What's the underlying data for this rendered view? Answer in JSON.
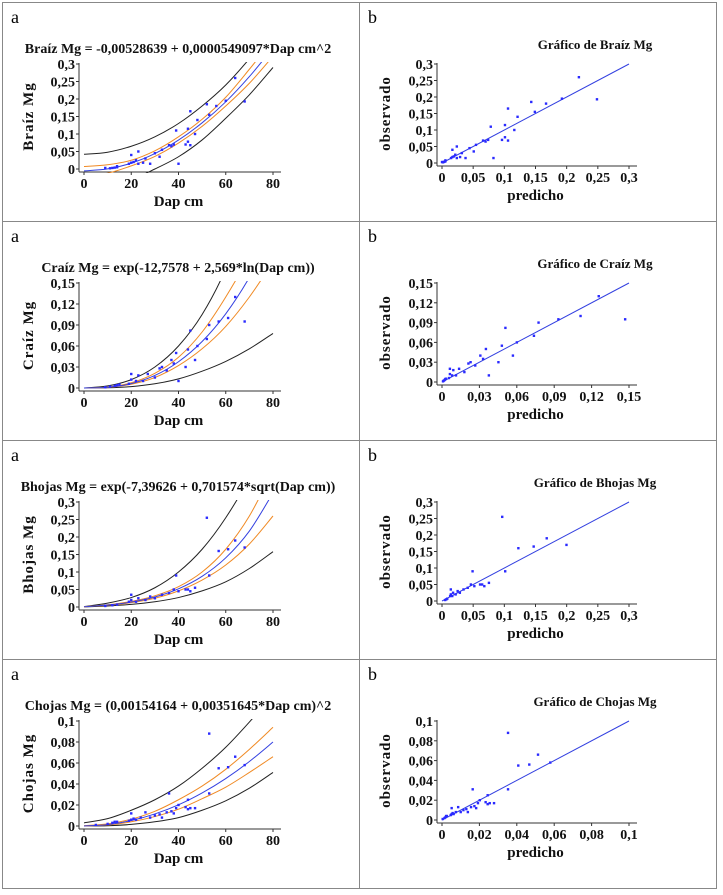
{
  "panel_labels": {
    "a": "a",
    "b": "b"
  },
  "colors": {
    "fit": "#3340e0",
    "confidence": "#f08a24",
    "prediction": "#222222",
    "points": "#2a2aff"
  },
  "chart_data": [
    {
      "type": "scatter",
      "panel": "a",
      "title": "Braíz Mg = -0,00528639 + 0,0000549097*Dap cm^2",
      "xlabel": "Dap cm",
      "ylabel": "Braíz Mg",
      "xlim": [
        0,
        80
      ],
      "ylim": [
        0,
        0.3
      ],
      "xticks": [
        "0",
        "20",
        "40",
        "60",
        "80"
      ],
      "xtick_values": [
        0,
        20,
        40,
        60,
        80
      ],
      "yticks": [
        "0",
        "0,05",
        "0,1",
        "0,15",
        "0,2",
        "0,25",
        "0,3"
      ],
      "ytick_values": [
        0,
        0.05,
        0.1,
        0.15,
        0.2,
        0.25,
        0.3
      ],
      "curve_x": [
        0,
        10,
        20,
        30,
        40,
        50,
        60,
        70,
        80
      ],
      "fit": [
        -0.0053,
        0.0002,
        0.0167,
        0.0441,
        0.0826,
        0.132,
        0.192,
        0.264,
        0.346
      ],
      "confidence_upper": [
        0.007,
        0.012,
        0.025,
        0.052,
        0.092,
        0.142,
        0.205,
        0.285,
        0.37
      ],
      "confidence_lower": [
        -0.02,
        -0.012,
        0.009,
        0.036,
        0.074,
        0.122,
        0.18,
        0.245,
        0.322
      ],
      "prediction_upper": [
        0.042,
        0.048,
        0.065,
        0.092,
        0.13,
        0.18,
        0.24,
        0.315,
        0.4
      ],
      "prediction_lower": [
        -0.05,
        -0.045,
        -0.03,
        0.0,
        0.035,
        0.083,
        0.145,
        0.212,
        0.29
      ],
      "points": [
        [
          9,
          0.003
        ],
        [
          11,
          0.002
        ],
        [
          12,
          0.003
        ],
        [
          13,
          0.004
        ],
        [
          14,
          0.008
        ],
        [
          14,
          0.005
        ],
        [
          19,
          0.015
        ],
        [
          20,
          0.018
        ],
        [
          20,
          0.04
        ],
        [
          21,
          0.02
        ],
        [
          22,
          0.025
        ],
        [
          23,
          0.05
        ],
        [
          23,
          0.015
        ],
        [
          25,
          0.018
        ],
        [
          26,
          0.03
        ],
        [
          28,
          0.015
        ],
        [
          30,
          0.045
        ],
        [
          32,
          0.035
        ],
        [
          33,
          0.055
        ],
        [
          36,
          0.068
        ],
        [
          37,
          0.065
        ],
        [
          38,
          0.07
        ],
        [
          39,
          0.11
        ],
        [
          40,
          0.015
        ],
        [
          43,
          0.07
        ],
        [
          44,
          0.115
        ],
        [
          44,
          0.078
        ],
        [
          45,
          0.068
        ],
        [
          45,
          0.165
        ],
        [
          47,
          0.1
        ],
        [
          48,
          0.14
        ],
        [
          52,
          0.185
        ],
        [
          53,
          0.155
        ],
        [
          56,
          0.18
        ],
        [
          60,
          0.195
        ],
        [
          64,
          0.26
        ],
        [
          68,
          0.193
        ]
      ]
    },
    {
      "type": "scatter",
      "panel": "b",
      "title": "Gráfico de Braíz Mg",
      "xlabel": "predicho",
      "ylabel": "observado",
      "xlim": [
        0,
        0.3
      ],
      "ylim": [
        0,
        0.3
      ],
      "xticks": [
        "0",
        "0,05",
        "0,1",
        "0,15",
        "0,2",
        "0,25",
        "0,3"
      ],
      "xtick_values": [
        0,
        0.05,
        0.1,
        0.15,
        0.2,
        0.25,
        0.3
      ],
      "yticks": [
        "0",
        "0,05",
        "0,1",
        "0,15",
        "0,2",
        "0,25",
        "0,3"
      ],
      "ytick_values": [
        0,
        0.05,
        0.1,
        0.15,
        0.2,
        0.25,
        0.3
      ],
      "line": [
        [
          0,
          0
        ],
        [
          0.3,
          0.3
        ]
      ]
    },
    {
      "type": "scatter",
      "panel": "a",
      "title": "Craíz Mg = exp(-12,7578 + 2,569*ln(Dap cm))",
      "xlabel": "Dap cm",
      "ylabel": "Craíz Mg",
      "xlim": [
        0,
        80
      ],
      "ylim": [
        0,
        0.15
      ],
      "xticks": [
        "0",
        "20",
        "40",
        "60",
        "80"
      ],
      "xtick_values": [
        0,
        20,
        40,
        60,
        80
      ],
      "yticks": [
        "0",
        "0,03",
        "0,06",
        "0,09",
        "0,12",
        "0,15"
      ],
      "ytick_values": [
        0,
        0.03,
        0.06,
        0.09,
        0.12,
        0.15
      ],
      "curve_x": [
        0,
        10,
        20,
        30,
        40,
        50,
        60,
        70,
        80
      ],
      "fit": [
        0,
        0.0011,
        0.0063,
        0.0179,
        0.0375,
        0.0664,
        0.106,
        0.158,
        0.224
      ],
      "confidence_upper": [
        0,
        0.0013,
        0.0075,
        0.021,
        0.044,
        0.08,
        0.13,
        0.19,
        0.27
      ],
      "confidence_lower": [
        0,
        0.0009,
        0.0053,
        0.015,
        0.032,
        0.056,
        0.088,
        0.13,
        0.18
      ],
      "prediction_upper": [
        0,
        0.003,
        0.012,
        0.03,
        0.06,
        0.105,
        0.17,
        0.26,
        0.38
      ],
      "prediction_lower": [
        0,
        0.0003,
        0.002,
        0.006,
        0.013,
        0.024,
        0.038,
        0.056,
        0.078
      ],
      "points": [
        [
          9,
          0.001
        ],
        [
          11,
          0.002
        ],
        [
          13,
          0.003
        ],
        [
          14,
          0.004
        ],
        [
          15,
          0.005
        ],
        [
          19,
          0.006
        ],
        [
          20,
          0.012
        ],
        [
          20,
          0.02
        ],
        [
          22,
          0.01
        ],
        [
          23,
          0.018
        ],
        [
          25,
          0.01
        ],
        [
          27,
          0.02
        ],
        [
          30,
          0.015
        ],
        [
          32,
          0.028
        ],
        [
          33,
          0.03
        ],
        [
          35,
          0.025
        ],
        [
          37,
          0.04
        ],
        [
          38,
          0.035
        ],
        [
          39,
          0.05
        ],
        [
          40,
          0.01
        ],
        [
          43,
          0.03
        ],
        [
          44,
          0.055
        ],
        [
          45,
          0.082
        ],
        [
          47,
          0.04
        ],
        [
          48,
          0.06
        ],
        [
          52,
          0.07
        ],
        [
          53,
          0.09
        ],
        [
          57,
          0.095
        ],
        [
          61,
          0.1
        ],
        [
          64,
          0.13
        ],
        [
          68,
          0.095
        ]
      ]
    },
    {
      "type": "scatter",
      "panel": "b",
      "title": "Gráfico de Craíz Mg",
      "xlabel": "predicho",
      "ylabel": "observado",
      "xlim": [
        0,
        0.15
      ],
      "ylim": [
        0,
        0.15
      ],
      "xticks": [
        "0",
        "0,03",
        "0,06",
        "0,09",
        "0,12",
        "0,15"
      ],
      "xtick_values": [
        0,
        0.03,
        0.06,
        0.09,
        0.12,
        0.15
      ],
      "yticks": [
        "0",
        "0,03",
        "0,06",
        "0,09",
        "0,12",
        "0,15"
      ],
      "ytick_values": [
        0,
        0.03,
        0.06,
        0.09,
        0.12,
        0.15
      ],
      "line": [
        [
          0,
          0
        ],
        [
          0.15,
          0.15
        ]
      ]
    },
    {
      "type": "scatter",
      "panel": "a",
      "title": "Bhojas Mg = exp(-7,39626 + 0,701574*sqrt(Dap cm))",
      "xlabel": "Dap cm",
      "ylabel": "Bhojas Mg",
      "xlim": [
        0,
        80
      ],
      "ylim": [
        0,
        0.3
      ],
      "xticks": [
        "0",
        "20",
        "40",
        "60",
        "80"
      ],
      "xtick_values": [
        0,
        20,
        40,
        60,
        80
      ],
      "yticks": [
        "0",
        "0,05",
        "0,1",
        "0,15",
        "0,2",
        "0,25",
        "0,3"
      ],
      "ytick_values": [
        0,
        0.05,
        0.1,
        0.15,
        0.2,
        0.25,
        0.3
      ],
      "curve_x": [
        0,
        10,
        20,
        30,
        40,
        50,
        60,
        70,
        80
      ],
      "fit": [
        0.0006,
        0.0056,
        0.0141,
        0.0286,
        0.0519,
        0.0876,
        0.1405,
        0.217,
        0.326
      ],
      "confidence_upper": [
        0.0008,
        0.0065,
        0.016,
        0.032,
        0.058,
        0.1,
        0.165,
        0.26,
        0.39
      ],
      "confidence_lower": [
        0.0005,
        0.0049,
        0.0125,
        0.025,
        0.046,
        0.077,
        0.12,
        0.18,
        0.26
      ],
      "prediction_upper": [
        0.001,
        0.011,
        0.027,
        0.055,
        0.1,
        0.165,
        0.255,
        0.37,
        0.52
      ],
      "prediction_lower": [
        0.0003,
        0.003,
        0.0075,
        0.015,
        0.027,
        0.046,
        0.072,
        0.11,
        0.158
      ],
      "points": [
        [
          9,
          0.003
        ],
        [
          12,
          0.005
        ],
        [
          14,
          0.007
        ],
        [
          19,
          0.015
        ],
        [
          20,
          0.02
        ],
        [
          20,
          0.035
        ],
        [
          22,
          0.015
        ],
        [
          23,
          0.025
        ],
        [
          26,
          0.02
        ],
        [
          28,
          0.03
        ],
        [
          30,
          0.025
        ],
        [
          33,
          0.035
        ],
        [
          36,
          0.04
        ],
        [
          38,
          0.05
        ],
        [
          39,
          0.09
        ],
        [
          40,
          0.045
        ],
        [
          43,
          0.05
        ],
        [
          44,
          0.05
        ],
        [
          45,
          0.045
        ],
        [
          47,
          0.055
        ],
        [
          52,
          0.255
        ],
        [
          53,
          0.09
        ],
        [
          57,
          0.16
        ],
        [
          61,
          0.165
        ],
        [
          64,
          0.19
        ],
        [
          68,
          0.17
        ]
      ]
    },
    {
      "type": "scatter",
      "panel": "b",
      "title": "Gráfico de Bhojas Mg",
      "xlabel": "predicho",
      "ylabel": "observado",
      "xlim": [
        0,
        0.3
      ],
      "ylim": [
        0,
        0.3
      ],
      "xticks": [
        "0",
        "0,05",
        "0,1",
        "0,15",
        "0,2",
        "0,25",
        "0,3"
      ],
      "xtick_values": [
        0,
        0.05,
        0.1,
        0.15,
        0.2,
        0.25,
        0.3
      ],
      "yticks": [
        "0",
        "0,05",
        "0,1",
        "0,15",
        "0,2",
        "0,25",
        "0,3"
      ],
      "ytick_values": [
        0,
        0.05,
        0.1,
        0.15,
        0.2,
        0.25,
        0.3
      ],
      "line": [
        [
          0,
          0
        ],
        [
          0.3,
          0.3
        ]
      ]
    },
    {
      "type": "scatter",
      "panel": "a",
      "title": "Chojas Mg = (0,00154164 + 0,00351645*Dap cm)^2",
      "xlabel": "Dap cm",
      "ylabel": "Chojas Mg",
      "xlim": [
        0,
        80
      ],
      "ylim": [
        0,
        0.1
      ],
      "xticks": [
        "0",
        "20",
        "40",
        "60",
        "80"
      ],
      "xtick_values": [
        0,
        20,
        40,
        60,
        80
      ],
      "yticks": [
        "0",
        "0,02",
        "0,04",
        "0,06",
        "0,08",
        "0,1"
      ],
      "ytick_values": [
        0,
        0.02,
        0.04,
        0.06,
        0.08,
        0.1
      ],
      "curve_x": [
        0,
        10,
        20,
        30,
        40,
        50,
        60,
        70,
        80
      ],
      "fit": [
        0.0,
        0.0013,
        0.0052,
        0.0115,
        0.0202,
        0.0315,
        0.0452,
        0.0614,
        0.08
      ],
      "confidence_upper": [
        0.0003,
        0.002,
        0.0065,
        0.014,
        0.025,
        0.038,
        0.054,
        0.073,
        0.094
      ],
      "confidence_lower": [
        0,
        0.0009,
        0.004,
        0.009,
        0.016,
        0.026,
        0.037,
        0.051,
        0.066
      ],
      "prediction_upper": [
        0.003,
        0.007,
        0.015,
        0.025,
        0.038,
        0.055,
        0.075,
        0.099,
        0.125
      ],
      "prediction_lower": [
        0,
        0.0002,
        0.0015,
        0.004,
        0.008,
        0.015,
        0.024,
        0.036,
        0.051
      ],
      "points": [
        [
          5,
          0.001
        ],
        [
          10,
          0.002
        ],
        [
          12,
          0.003
        ],
        [
          13,
          0.004
        ],
        [
          14,
          0.004
        ],
        [
          19,
          0.005
        ],
        [
          20,
          0.012
        ],
        [
          20,
          0.006
        ],
        [
          21,
          0.007
        ],
        [
          22,
          0.006
        ],
        [
          24,
          0.008
        ],
        [
          26,
          0.013
        ],
        [
          28,
          0.008
        ],
        [
          30,
          0.01
        ],
        [
          32,
          0.011
        ],
        [
          33,
          0.008
        ],
        [
          35,
          0.013
        ],
        [
          36,
          0.031
        ],
        [
          37,
          0.014
        ],
        [
          38,
          0.012
        ],
        [
          39,
          0.017
        ],
        [
          40,
          0.02
        ],
        [
          43,
          0.018
        ],
        [
          44,
          0.025
        ],
        [
          44,
          0.016
        ],
        [
          45,
          0.017
        ],
        [
          47,
          0.017
        ],
        [
          53,
          0.088
        ],
        [
          53,
          0.031
        ],
        [
          57,
          0.055
        ],
        [
          61,
          0.056
        ],
        [
          64,
          0.066
        ],
        [
          68,
          0.058
        ]
      ]
    },
    {
      "type": "scatter",
      "panel": "b",
      "title": "Gráfico de Chojas Mg",
      "xlabel": "predicho",
      "ylabel": "observado",
      "xlim": [
        0,
        0.1
      ],
      "ylim": [
        0,
        0.1
      ],
      "xticks": [
        "0",
        "0,02",
        "0,04",
        "0,06",
        "0,08",
        "0,1"
      ],
      "xtick_values": [
        0,
        0.02,
        0.04,
        0.06,
        0.08,
        0.1
      ],
      "yticks": [
        "0",
        "0,02",
        "0,04",
        "0,06",
        "0,08",
        "0,1"
      ],
      "ytick_values": [
        0,
        0.02,
        0.04,
        0.06,
        0.08,
        0.1
      ],
      "line": [
        [
          0,
          0
        ],
        [
          0.1,
          0.1
        ]
      ]
    }
  ]
}
